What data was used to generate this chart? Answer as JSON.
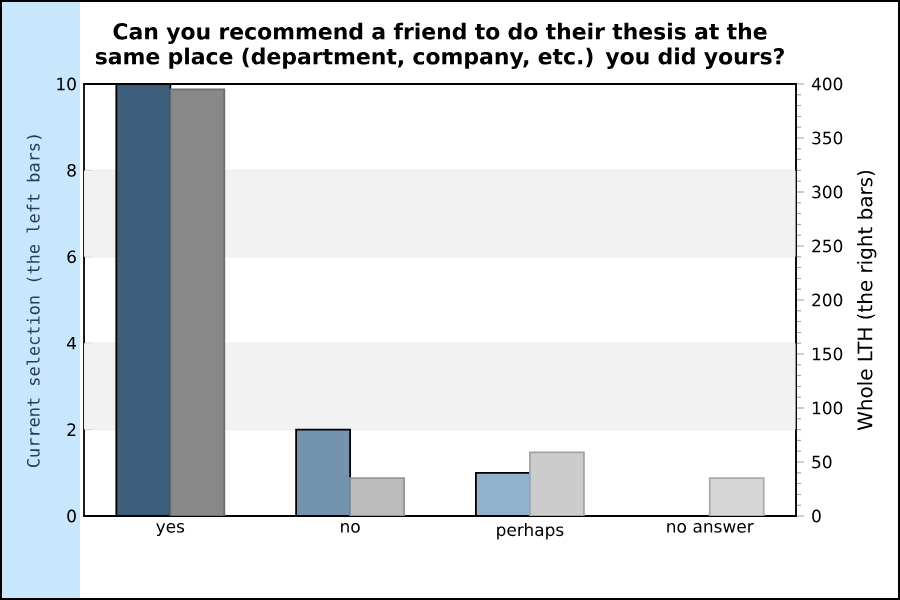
{
  "chart_data": {
    "type": "bar",
    "title": "Can you recommend a friend to do their thesis at the same place (department, company, etc.) you did yours?",
    "categories": [
      "yes",
      "no",
      "perhaps",
      "no answer"
    ],
    "series": [
      {
        "values": [
          10,
          2,
          1,
          0
        ],
        "colors": [
          "#3d5f7b",
          "#7393af",
          "#91b1cc",
          "#a9c4dc"
        ]
      },
      {
        "values": [
          395,
          35,
          59,
          35
        ],
        "colors": [
          "#888888",
          "#bbbbbb",
          "#cccccc",
          "#d6d6d6"
        ],
        "axis": "y2"
      }
    ],
    "ylabel": "Current selection (the left bars)",
    "y2label": "Whole LTH (the right bars)",
    "ylim": [
      0,
      10
    ],
    "yticks": [
      0,
      2,
      4,
      6,
      8,
      10
    ],
    "y2lim": [
      0,
      400
    ],
    "y2ticks": [
      0,
      50,
      100,
      150,
      200,
      250,
      300,
      350,
      400
    ],
    "grid": "y",
    "bands": [
      {
        "axis": "y",
        "from": 2,
        "to": 4,
        "color": "#f2f2f2"
      },
      {
        "axis": "y",
        "from": 6,
        "to": 8,
        "color": "#f2f2f2"
      }
    ]
  }
}
